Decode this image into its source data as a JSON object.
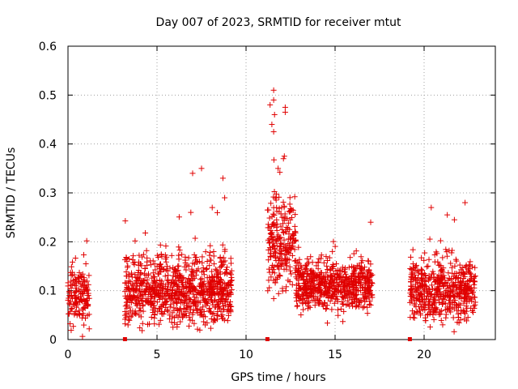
{
  "chart_data": {
    "type": "scatter",
    "title": "Day 007 of 2023, SRMTID for receiver mtut",
    "xlabel": "GPS time / hours",
    "ylabel": "SRMTID / TECUs",
    "xlim": [
      0,
      24
    ],
    "ylim": [
      0,
      0.6
    ],
    "x_ticks": [
      0,
      5,
      10,
      15,
      20
    ],
    "x_tick_labels": [
      "0",
      "5",
      "10",
      "15",
      "20"
    ],
    "y_ticks": [
      0,
      0.1,
      0.2,
      0.3,
      0.4,
      0.5,
      0.6
    ],
    "y_tick_labels": [
      "0",
      "0.1",
      "0.2",
      "0.3",
      "0.4",
      "0.5",
      "0.6"
    ],
    "grid": true,
    "marker": "+",
    "color": "#e00000",
    "series": [
      {
        "name": "SRMTID",
        "clusters": [
          {
            "x_start": 0.0,
            "x_end": 1.2,
            "y_center": 0.09,
            "y_spread": 0.045,
            "points": 150
          },
          {
            "x_start": 3.2,
            "x_end": 9.2,
            "y_center": 0.1,
            "y_spread": 0.055,
            "points": 900
          },
          {
            "x_start": 11.2,
            "x_end": 12.8,
            "y_center": 0.19,
            "y_spread": 0.07,
            "points": 230
          },
          {
            "x_start": 12.8,
            "x_end": 17.1,
            "y_center": 0.11,
            "y_spread": 0.04,
            "points": 620
          },
          {
            "x_start": 19.2,
            "x_end": 22.9,
            "y_center": 0.1,
            "y_spread": 0.05,
            "points": 520
          }
        ],
        "highlights": [
          {
            "x": 7.0,
            "y": 0.34
          },
          {
            "x": 7.5,
            "y": 0.35
          },
          {
            "x": 8.1,
            "y": 0.27
          },
          {
            "x": 8.7,
            "y": 0.33
          },
          {
            "x": 8.8,
            "y": 0.29
          },
          {
            "x": 6.9,
            "y": 0.26
          },
          {
            "x": 11.55,
            "y": 0.51
          },
          {
            "x": 11.55,
            "y": 0.49
          },
          {
            "x": 11.35,
            "y": 0.48
          },
          {
            "x": 11.6,
            "y": 0.46
          },
          {
            "x": 11.45,
            "y": 0.44
          },
          {
            "x": 11.55,
            "y": 0.425
          },
          {
            "x": 12.2,
            "y": 0.475
          },
          {
            "x": 12.2,
            "y": 0.465
          },
          {
            "x": 12.15,
            "y": 0.375
          },
          {
            "x": 12.1,
            "y": 0.37
          },
          {
            "x": 11.8,
            "y": 0.35
          },
          {
            "x": 22.3,
            "y": 0.28
          },
          {
            "x": 20.4,
            "y": 0.27
          },
          {
            "x": 21.3,
            "y": 0.255
          },
          {
            "x": 17.0,
            "y": 0.24
          },
          {
            "x": 21.7,
            "y": 0.245
          }
        ]
      }
    ],
    "gap_markers_x": [
      3.2,
      11.2,
      19.2
    ]
  }
}
